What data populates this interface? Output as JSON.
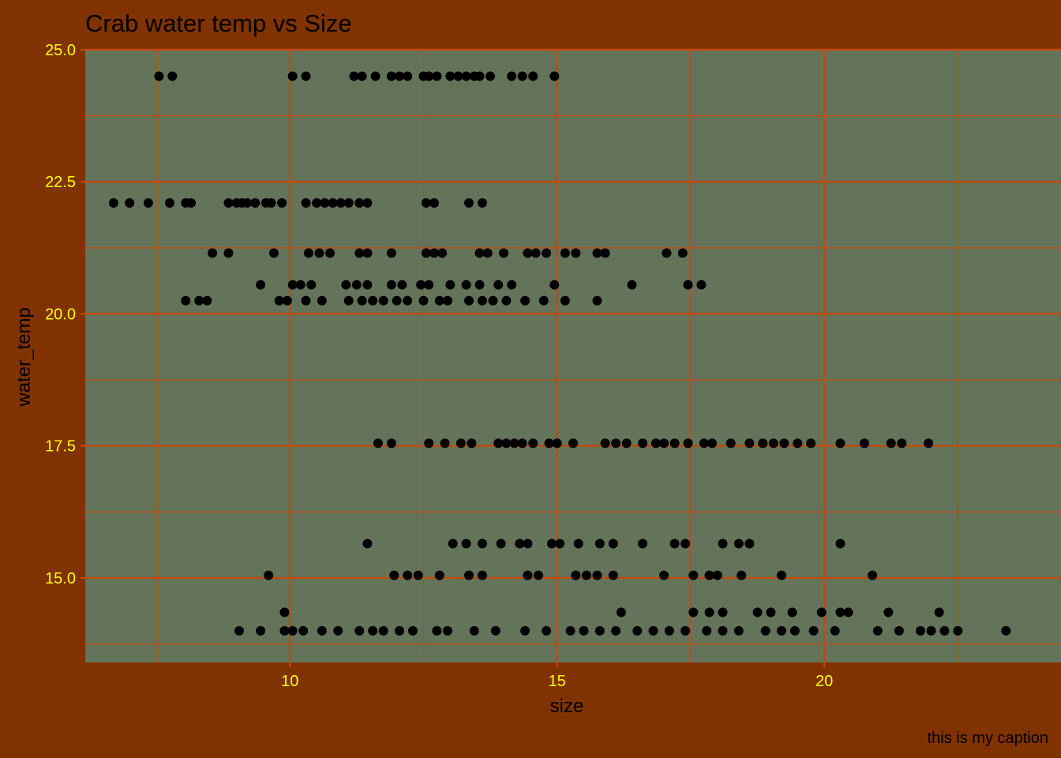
{
  "chart_data": {
    "type": "scatter",
    "title": "Crab water temp vs Size",
    "xlabel": "size",
    "ylabel": "water_temp",
    "caption": "this is my caption",
    "xlim": [
      6.17,
      24.43
    ],
    "ylim": [
      13.4,
      25.0
    ],
    "x_ticks": [
      10,
      15,
      20
    ],
    "x_tick_labels": [
      "10",
      "15",
      "20"
    ],
    "y_ticks": [
      15.0,
      17.5,
      20.0,
      22.5,
      25.0
    ],
    "y_tick_labels": [
      "15.0",
      "17.5",
      "20.0",
      "22.5",
      "25.0"
    ],
    "grid": true,
    "colors": {
      "background": "#803300",
      "panel": "#64745a",
      "grid": "#c24a0d",
      "tick_labels": "#ffff00",
      "points": "#000000",
      "text": "#000000"
    },
    "series": [
      {
        "groups": [
          {
            "y": 24.5,
            "x": [
              7.55,
              7.8,
              10.05,
              10.3,
              11.2,
              11.35,
              11.6,
              11.9,
              12.05,
              12.2,
              12.5,
              12.6,
              12.75,
              13.0,
              13.15,
              13.3,
              13.45,
              13.55,
              13.75,
              14.15,
              14.35,
              14.55,
              14.95
            ]
          },
          {
            "y": 22.1,
            "x": [
              6.7,
              7.0,
              7.35,
              7.75,
              8.05,
              8.15,
              8.85,
              9.0,
              9.1,
              9.2,
              9.35,
              9.55,
              9.65,
              9.85,
              10.3,
              10.5,
              10.65,
              10.8,
              10.95,
              11.1,
              11.3,
              11.45,
              12.55,
              12.7,
              13.35,
              13.6
            ]
          },
          {
            "y": 21.15,
            "x": [
              8.55,
              8.85,
              9.7,
              10.35,
              10.55,
              10.75,
              11.3,
              11.45,
              11.9,
              12.55,
              12.7,
              12.85,
              13.55,
              13.7,
              14.0,
              14.45,
              14.6,
              14.8,
              15.15,
              15.35,
              15.75,
              15.9,
              17.05,
              17.35
            ]
          },
          {
            "y": 20.55,
            "x": [
              9.45,
              10.05,
              10.2,
              10.4,
              11.05,
              11.25,
              11.45,
              11.9,
              12.1,
              12.45,
              12.6,
              13.0,
              13.3,
              13.55,
              13.9,
              14.15,
              14.95,
              16.4,
              17.45,
              17.7
            ]
          },
          {
            "y": 20.25,
            "x": [
              8.05,
              8.3,
              8.45,
              9.8,
              9.95,
              10.3,
              10.6,
              11.1,
              11.35,
              11.55,
              11.75,
              12.0,
              12.2,
              12.5,
              12.8,
              12.95,
              13.35,
              13.6,
              13.8,
              14.05,
              14.4,
              14.75,
              15.15,
              15.75
            ]
          },
          {
            "y": 17.55,
            "x": [
              11.65,
              11.9,
              12.6,
              12.9,
              13.2,
              13.4,
              13.9,
              14.05,
              14.2,
              14.35,
              14.55,
              14.85,
              15.0,
              15.3,
              15.9,
              16.1,
              16.3,
              16.6,
              16.85,
              17.0,
              17.2,
              17.45,
              17.75,
              17.9,
              18.25,
              18.6,
              18.85,
              19.05,
              19.25,
              19.5,
              19.75,
              20.3,
              20.75,
              21.25,
              21.45,
              21.95
            ]
          },
          {
            "y": 15.65,
            "x": [
              11.45,
              13.05,
              13.3,
              13.6,
              13.95,
              14.3,
              14.45,
              14.9,
              15.05,
              15.4,
              15.8,
              16.05,
              16.6,
              17.2,
              17.4,
              18.1,
              18.4,
              18.6,
              20.3
            ]
          },
          {
            "y": 15.05,
            "x": [
              9.6,
              11.95,
              12.2,
              12.4,
              12.8,
              13.35,
              13.6,
              14.45,
              14.65,
              15.35,
              15.55,
              15.75,
              16.05,
              17.0,
              17.55,
              17.85,
              18.0,
              18.45,
              19.2,
              20.9
            ]
          },
          {
            "y": 14.35,
            "x": [
              9.9,
              16.2,
              17.55,
              17.85,
              18.1,
              18.75,
              19.0,
              19.4,
              19.95,
              20.3,
              20.45,
              21.2,
              22.15
            ]
          },
          {
            "y": 14.0,
            "x": [
              9.05,
              9.45,
              9.9,
              10.05,
              10.25,
              10.6,
              10.9,
              11.3,
              11.55,
              11.75,
              12.05,
              12.3,
              12.75,
              12.95,
              13.45,
              13.85,
              14.4,
              14.8,
              15.25,
              15.5,
              15.8,
              16.1,
              16.5,
              16.8,
              17.1,
              17.4,
              17.8,
              18.1,
              18.4,
              18.9,
              19.2,
              19.45,
              19.8,
              20.2,
              21.0,
              21.4,
              21.8,
              22.0,
              22.25,
              22.5,
              23.4
            ]
          }
        ]
      }
    ]
  }
}
